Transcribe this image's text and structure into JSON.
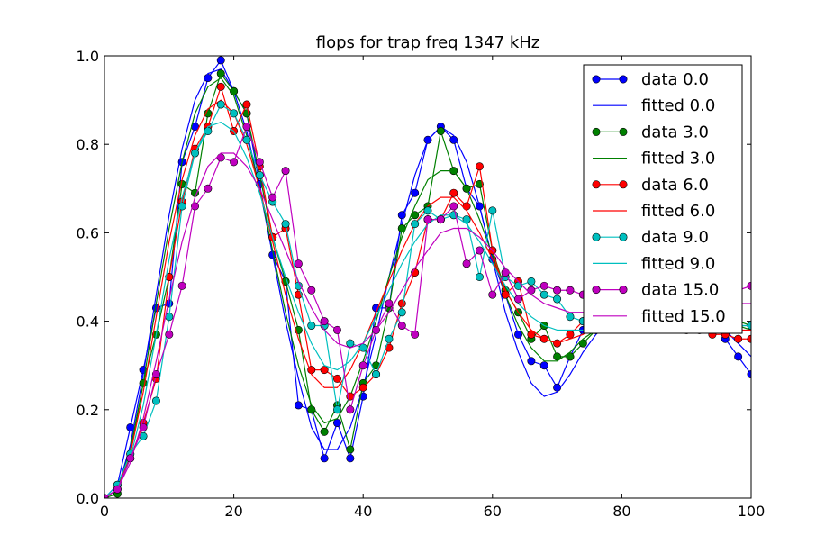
{
  "chart_data": {
    "type": "line",
    "title": "flops for trap freq 1347 kHz",
    "xlabel": "",
    "ylabel": "",
    "xlim": [
      0,
      100
    ],
    "ylim": [
      0.0,
      1.0
    ],
    "xticks": [
      0,
      20,
      40,
      60,
      80,
      100
    ],
    "xtick_labels": [
      "0",
      "20",
      "40",
      "60",
      "80",
      "100"
    ],
    "yticks": [
      0.0,
      0.2,
      0.4,
      0.6,
      0.8,
      1.0
    ],
    "ytick_labels": [
      "0.0",
      "0.2",
      "0.4",
      "0.6",
      "0.8",
      "1.0"
    ],
    "grid": false,
    "legend_position": "top-right",
    "x": [
      0,
      2,
      4,
      6,
      8,
      10,
      12,
      14,
      16,
      18,
      20,
      22,
      24,
      26,
      28,
      30,
      32,
      34,
      36,
      38,
      40,
      42,
      44,
      46,
      48,
      50,
      52,
      54,
      56,
      58,
      60,
      62,
      64,
      66,
      68,
      70,
      72,
      74,
      76,
      78,
      80,
      82,
      84,
      86,
      88,
      90,
      92,
      94,
      96,
      98,
      100
    ],
    "series": [
      {
        "name": "data 0.0",
        "color": "#0000ff",
        "kind": "data",
        "values": [
          0.0,
          0.03,
          0.16,
          0.29,
          0.43,
          0.44,
          0.76,
          0.84,
          0.95,
          0.99,
          0.92,
          0.87,
          0.71,
          0.55,
          0.49,
          0.21,
          0.2,
          0.09,
          0.17,
          0.09,
          0.23,
          0.43,
          0.43,
          0.64,
          0.69,
          0.81,
          0.84,
          0.81,
          0.7,
          0.66,
          0.54,
          0.46,
          0.37,
          0.31,
          0.3,
          0.25,
          0.32,
          0.38,
          0.4,
          0.4,
          0.4,
          0.41,
          0.42,
          0.42,
          0.42,
          0.42,
          0.42,
          0.4,
          0.36,
          0.32,
          0.28
        ]
      },
      {
        "name": "fitted 0.0",
        "color": "#0000ff",
        "kind": "fit",
        "values": [
          0.0,
          0.02,
          0.12,
          0.28,
          0.46,
          0.64,
          0.79,
          0.9,
          0.96,
          0.97,
          0.92,
          0.83,
          0.7,
          0.55,
          0.4,
          0.27,
          0.16,
          0.11,
          0.11,
          0.16,
          0.25,
          0.37,
          0.5,
          0.62,
          0.73,
          0.81,
          0.84,
          0.82,
          0.76,
          0.66,
          0.54,
          0.42,
          0.33,
          0.26,
          0.23,
          0.24,
          0.28,
          0.33,
          0.37,
          0.4,
          0.41,
          0.42,
          0.42,
          0.42,
          0.42,
          0.42,
          0.41,
          0.4,
          0.38,
          0.35,
          0.32
        ]
      },
      {
        "name": "data 3.0",
        "color": "#008000",
        "kind": "data",
        "values": [
          0.0,
          0.01,
          0.1,
          0.26,
          0.37,
          0.5,
          0.71,
          0.69,
          0.87,
          0.96,
          0.92,
          0.87,
          0.73,
          0.59,
          0.49,
          0.38,
          0.2,
          0.15,
          0.21,
          0.11,
          0.26,
          0.3,
          0.43,
          0.61,
          0.64,
          0.66,
          0.83,
          0.74,
          0.7,
          0.71,
          0.56,
          0.47,
          0.42,
          0.36,
          0.39,
          0.32,
          0.32,
          0.35,
          0.38,
          0.4,
          0.41,
          0.42,
          0.42,
          0.42,
          0.42,
          0.42,
          0.42,
          0.41,
          0.4,
          0.4,
          0.39
        ]
      },
      {
        "name": "fitted 3.0",
        "color": "#008000",
        "kind": "fit",
        "values": [
          0.0,
          0.02,
          0.11,
          0.26,
          0.44,
          0.61,
          0.76,
          0.87,
          0.93,
          0.95,
          0.91,
          0.82,
          0.7,
          0.56,
          0.42,
          0.3,
          0.21,
          0.17,
          0.18,
          0.23,
          0.31,
          0.4,
          0.5,
          0.59,
          0.66,
          0.72,
          0.74,
          0.74,
          0.7,
          0.63,
          0.55,
          0.46,
          0.39,
          0.34,
          0.31,
          0.31,
          0.33,
          0.36,
          0.38,
          0.4,
          0.41,
          0.42,
          0.42,
          0.42,
          0.42,
          0.42,
          0.42,
          0.41,
          0.4,
          0.39,
          0.38
        ]
      },
      {
        "name": "data 6.0",
        "color": "#ff0000",
        "kind": "data",
        "values": [
          0.0,
          0.02,
          0.09,
          0.17,
          0.27,
          0.5,
          0.67,
          0.79,
          0.84,
          0.93,
          0.83,
          0.89,
          0.75,
          0.59,
          0.61,
          0.46,
          0.29,
          0.29,
          0.27,
          0.23,
          0.25,
          0.28,
          0.34,
          0.44,
          0.51,
          0.63,
          0.63,
          0.69,
          0.66,
          0.75,
          0.56,
          0.46,
          0.49,
          0.37,
          0.36,
          0.35,
          0.37,
          0.4,
          0.4,
          0.4,
          0.41,
          0.41,
          0.41,
          0.4,
          0.39,
          0.38,
          0.38,
          0.37,
          0.37,
          0.36,
          0.36
        ]
      },
      {
        "name": "fitted 6.0",
        "color": "#ff0000",
        "kind": "fit",
        "values": [
          0.0,
          0.02,
          0.1,
          0.24,
          0.41,
          0.58,
          0.72,
          0.82,
          0.88,
          0.9,
          0.87,
          0.8,
          0.7,
          0.58,
          0.46,
          0.36,
          0.28,
          0.25,
          0.25,
          0.29,
          0.35,
          0.42,
          0.49,
          0.56,
          0.62,
          0.66,
          0.68,
          0.68,
          0.65,
          0.6,
          0.54,
          0.47,
          0.42,
          0.38,
          0.36,
          0.35,
          0.36,
          0.37,
          0.39,
          0.4,
          0.4,
          0.41,
          0.41,
          0.41,
          0.4,
          0.4,
          0.39,
          0.39,
          0.38,
          0.38,
          0.38
        ]
      },
      {
        "name": "data 9.0",
        "color": "#00bfbf",
        "kind": "data",
        "values": [
          0.0,
          0.03,
          0.1,
          0.14,
          0.22,
          0.41,
          0.66,
          0.78,
          0.83,
          0.89,
          0.87,
          0.81,
          0.73,
          0.67,
          0.62,
          0.48,
          0.39,
          0.39,
          0.2,
          0.35,
          0.34,
          0.28,
          0.36,
          0.42,
          0.62,
          0.65,
          0.63,
          0.64,
          0.63,
          0.5,
          0.65,
          0.5,
          0.48,
          0.49,
          0.46,
          0.45,
          0.41,
          0.4,
          0.4,
          0.39,
          0.4,
          0.4,
          0.41,
          0.41,
          0.41,
          0.41,
          0.41,
          0.4,
          0.4,
          0.39,
          0.39
        ]
      },
      {
        "name": "fitted 9.0",
        "color": "#00bfbf",
        "kind": "fit",
        "values": [
          0.0,
          0.02,
          0.09,
          0.21,
          0.37,
          0.54,
          0.68,
          0.78,
          0.84,
          0.85,
          0.83,
          0.77,
          0.69,
          0.59,
          0.5,
          0.42,
          0.35,
          0.3,
          0.29,
          0.31,
          0.35,
          0.41,
          0.47,
          0.53,
          0.58,
          0.62,
          0.64,
          0.64,
          0.62,
          0.58,
          0.53,
          0.48,
          0.44,
          0.41,
          0.39,
          0.38,
          0.38,
          0.38,
          0.39,
          0.39,
          0.4,
          0.4,
          0.4,
          0.4,
          0.4,
          0.4,
          0.4,
          0.4,
          0.4,
          0.39,
          0.39
        ]
      },
      {
        "name": "data 15.0",
        "color": "#bf00bf",
        "kind": "data",
        "values": [
          0.0,
          0.02,
          0.09,
          0.16,
          0.28,
          0.37,
          0.48,
          0.66,
          0.7,
          0.77,
          0.76,
          0.84,
          0.76,
          0.68,
          0.74,
          0.53,
          0.47,
          0.4,
          0.38,
          0.2,
          0.3,
          0.38,
          0.44,
          0.39,
          0.37,
          0.63,
          0.63,
          0.66,
          0.53,
          0.56,
          0.46,
          0.51,
          0.45,
          0.47,
          0.48,
          0.47,
          0.47,
          0.46,
          0.46,
          0.45,
          0.45,
          0.45,
          0.46,
          0.46,
          0.46,
          0.46,
          0.47,
          0.47,
          0.47,
          0.47,
          0.48
        ]
      },
      {
        "name": "fitted 15.0",
        "color": "#bf00bf",
        "kind": "fit",
        "values": [
          0.0,
          0.02,
          0.08,
          0.18,
          0.31,
          0.45,
          0.58,
          0.68,
          0.75,
          0.78,
          0.78,
          0.75,
          0.7,
          0.63,
          0.56,
          0.49,
          0.43,
          0.38,
          0.35,
          0.34,
          0.35,
          0.38,
          0.42,
          0.47,
          0.52,
          0.56,
          0.6,
          0.61,
          0.61,
          0.59,
          0.56,
          0.52,
          0.49,
          0.46,
          0.44,
          0.43,
          0.42,
          0.42,
          0.42,
          0.43,
          0.43,
          0.43,
          0.44,
          0.44,
          0.44,
          0.44,
          0.44,
          0.44,
          0.44,
          0.44,
          0.44
        ]
      }
    ]
  }
}
